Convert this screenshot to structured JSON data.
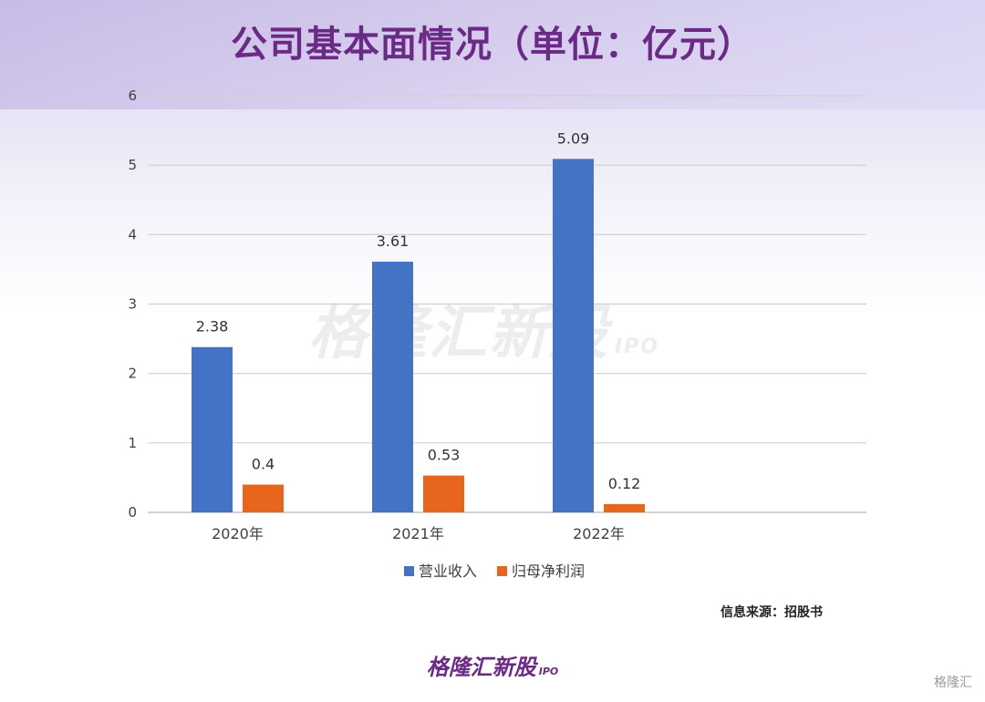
{
  "title": "公司基本面情况（单位：亿元）",
  "source": "信息来源：招股书",
  "watermark": {
    "main": "格隆汇新股",
    "sub": "IPO"
  },
  "footer_logo": {
    "main": "格隆汇新股",
    "sub": "IPO"
  },
  "corner_logo": "格隆汇",
  "chart_data": {
    "type": "bar",
    "categories": [
      "2020年",
      "2021年",
      "2022年"
    ],
    "series": [
      {
        "name": "营业收入",
        "values": [
          2.38,
          3.61,
          5.09
        ],
        "labels": [
          "2.38",
          "3.61",
          "5.09"
        ],
        "color": "#4472c4"
      },
      {
        "name": "归母净利润",
        "values": [
          0.4,
          0.53,
          0.12
        ],
        "labels": [
          "0.4",
          "0.53",
          "0.12"
        ],
        "color": "#e8651e"
      }
    ],
    "yticks": [
      "0",
      "1",
      "2",
      "3",
      "4",
      "5",
      "6"
    ],
    "ylim": [
      0,
      6
    ],
    "grid": true,
    "legend": "bottom"
  }
}
